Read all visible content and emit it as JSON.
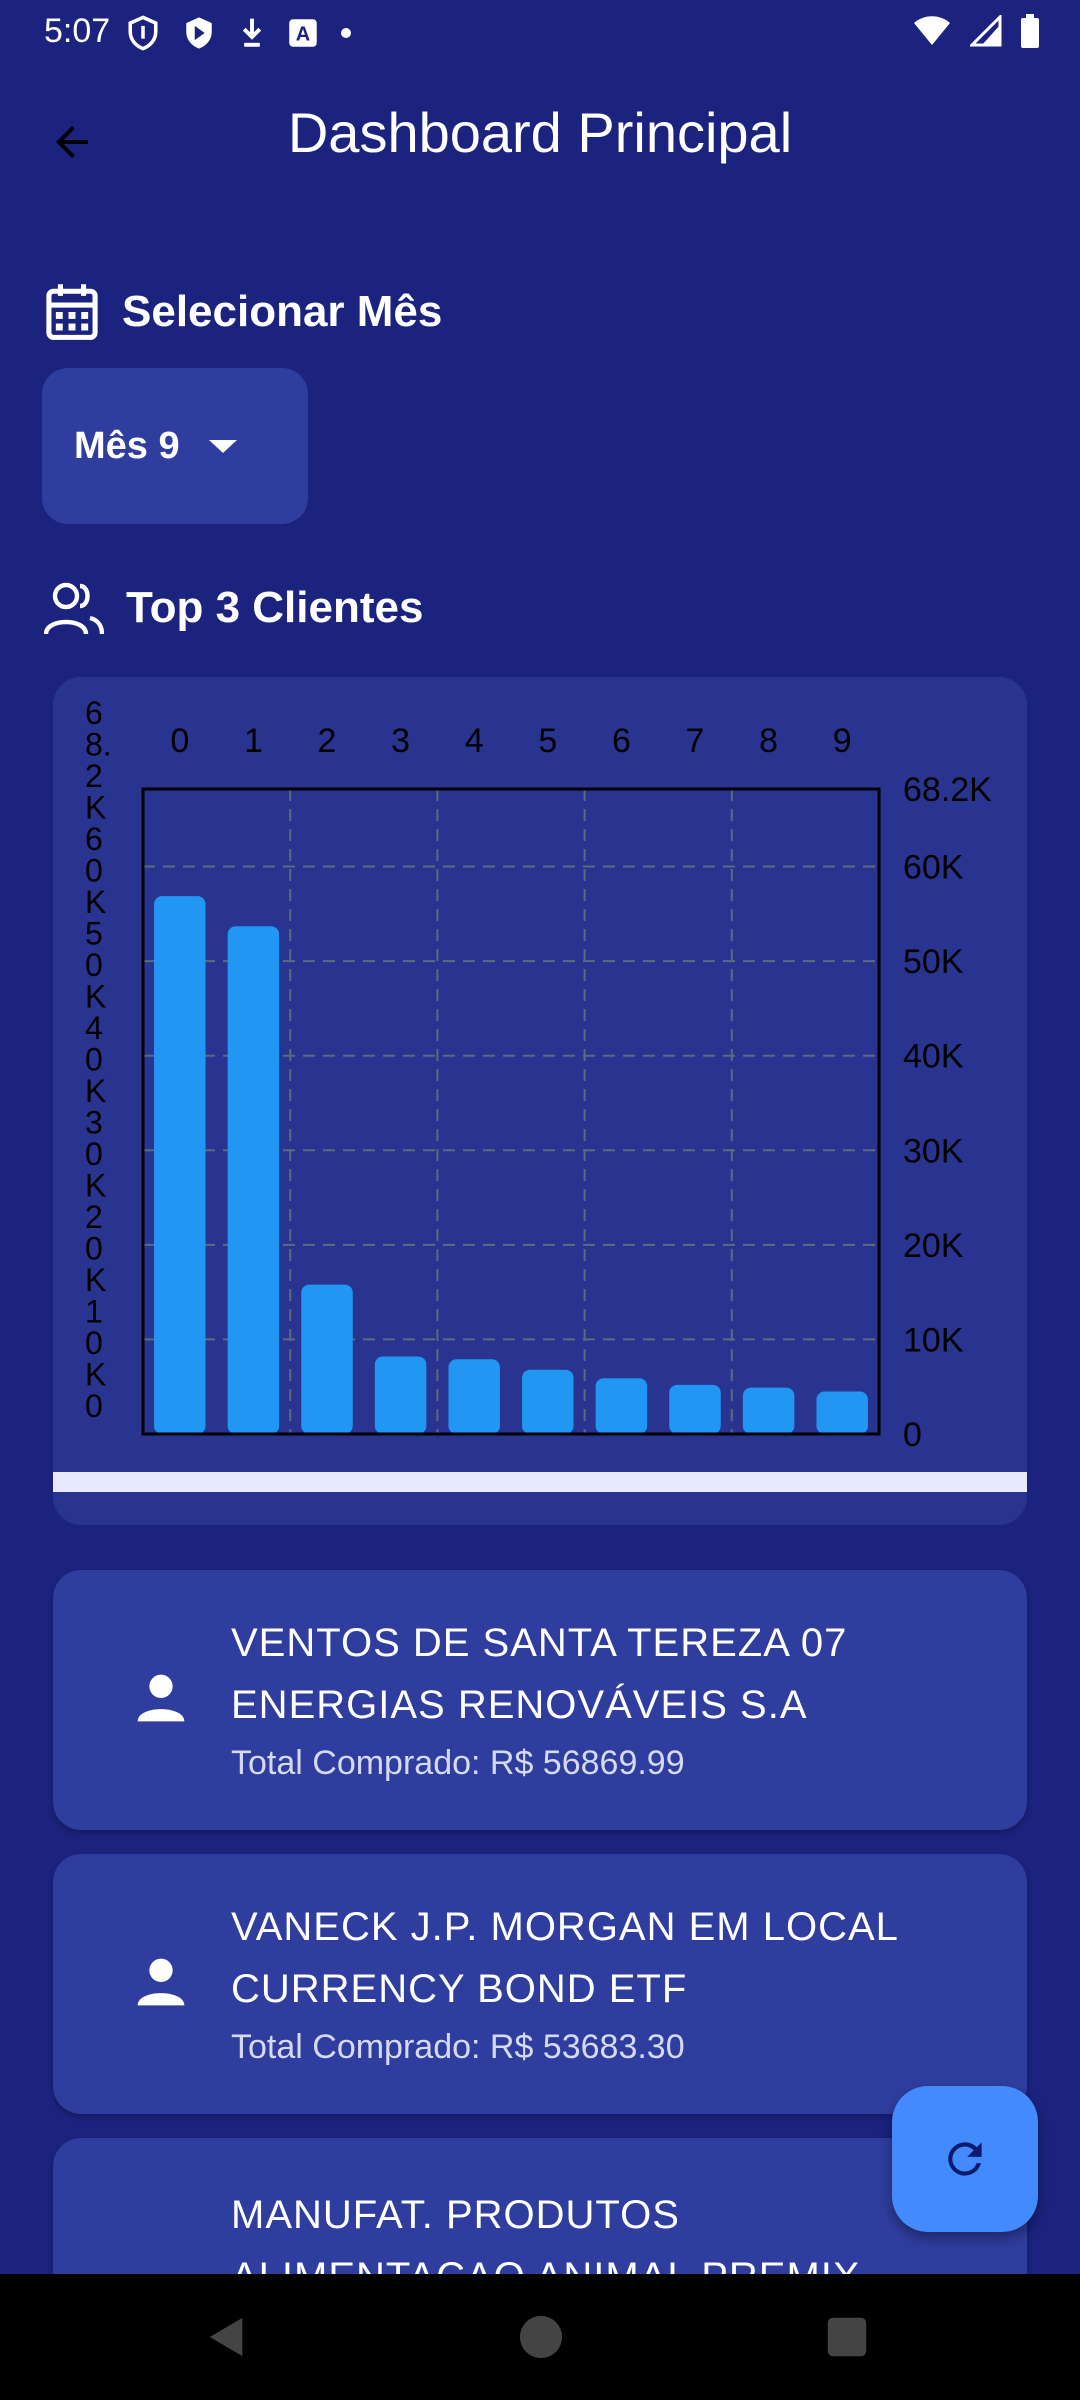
{
  "status_bar": {
    "time": "5:07"
  },
  "app_bar": {
    "title": "Dashboard Principal"
  },
  "month_section": {
    "title": "Selecionar Mês",
    "selected": "Mês 9"
  },
  "clients_section": {
    "title": "Top 3 Clientes"
  },
  "chart_data": {
    "type": "bar",
    "categories": [
      "0",
      "1",
      "2",
      "3",
      "4",
      "5",
      "6",
      "7",
      "8",
      "9"
    ],
    "values": [
      56870,
      53683,
      15800,
      8200,
      7900,
      6800,
      5900,
      5200,
      4900,
      4500
    ],
    "ylim": [
      0,
      68200
    ],
    "right_axis_ticks": [
      "68.2K",
      "60K",
      "50K",
      "40K",
      "30K",
      "20K",
      "10K",
      "0"
    ],
    "left_axis_ticks": [
      "6",
      "8.",
      "2",
      "K",
      "6",
      "0",
      "K",
      "5",
      "0",
      "K",
      "4",
      "0",
      "K",
      "3",
      "0",
      "K",
      "2",
      "0",
      "K",
      "1",
      "0",
      "K",
      "0"
    ],
    "grid": true
  },
  "clients": [
    {
      "name_line1": "VENTOS DE SANTA TEREZA 07",
      "name_line2": "ENERGIAS RENOVÁVEIS S.A",
      "total": "Total Comprado: R$ 56869.99"
    },
    {
      "name_line1": "VANECK J.P. MORGAN EM LOCAL",
      "name_line2": "CURRENCY BOND ETF",
      "total": "Total Comprado: R$ 53683.30"
    },
    {
      "name_line1": "MANUFAT. PRODUTOS",
      "name_line2": "ALIMENTACAO ANIMAL PREMIX",
      "total": ""
    }
  ],
  "colors": {
    "background": "#1b237e",
    "card": "#2f3d9e",
    "bar": "#2196f3",
    "fab": "#448aff"
  }
}
